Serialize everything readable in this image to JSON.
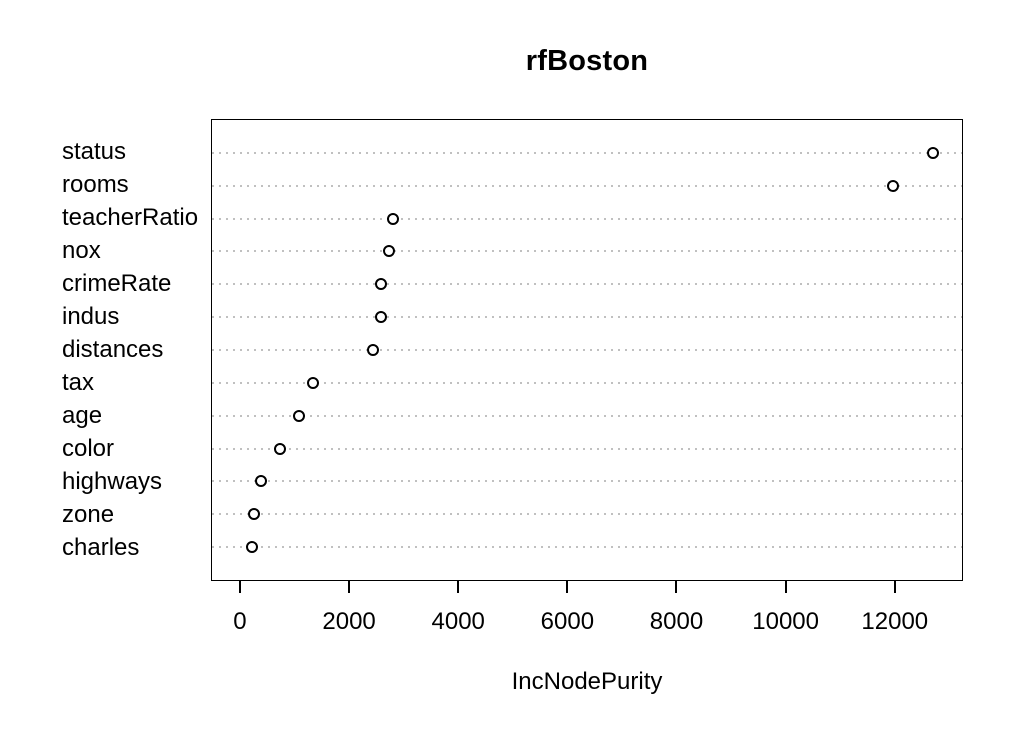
{
  "figure": {
    "title": "rfBoston",
    "xlabel": "IncNodePurity"
  },
  "chart_data": {
    "type": "scatter",
    "subtype": "dotchart-variable-importance",
    "title": "rfBoston",
    "xlabel": "IncNodePurity",
    "ylabel": "",
    "categories": [
      "status",
      "rooms",
      "teacherRatio",
      "nox",
      "crimeRate",
      "indus",
      "distances",
      "tax",
      "age",
      "color",
      "highways",
      "zone",
      "charles"
    ],
    "values": [
      12710,
      11980,
      2800,
      2730,
      2580,
      2570,
      2420,
      1320,
      1060,
      715,
      365,
      240,
      210
    ],
    "xticks": [
      0,
      2000,
      4000,
      6000,
      8000,
      10000,
      12000
    ],
    "xlim": [
      -530,
      13250
    ],
    "grid": "horizontal-dotted",
    "legend": "none",
    "point_style": "open-circle",
    "colors": {
      "background": "#ffffff",
      "point_stroke": "#000000",
      "grid": "#c0c0c0",
      "box": "#000000",
      "text": "#000000"
    }
  }
}
